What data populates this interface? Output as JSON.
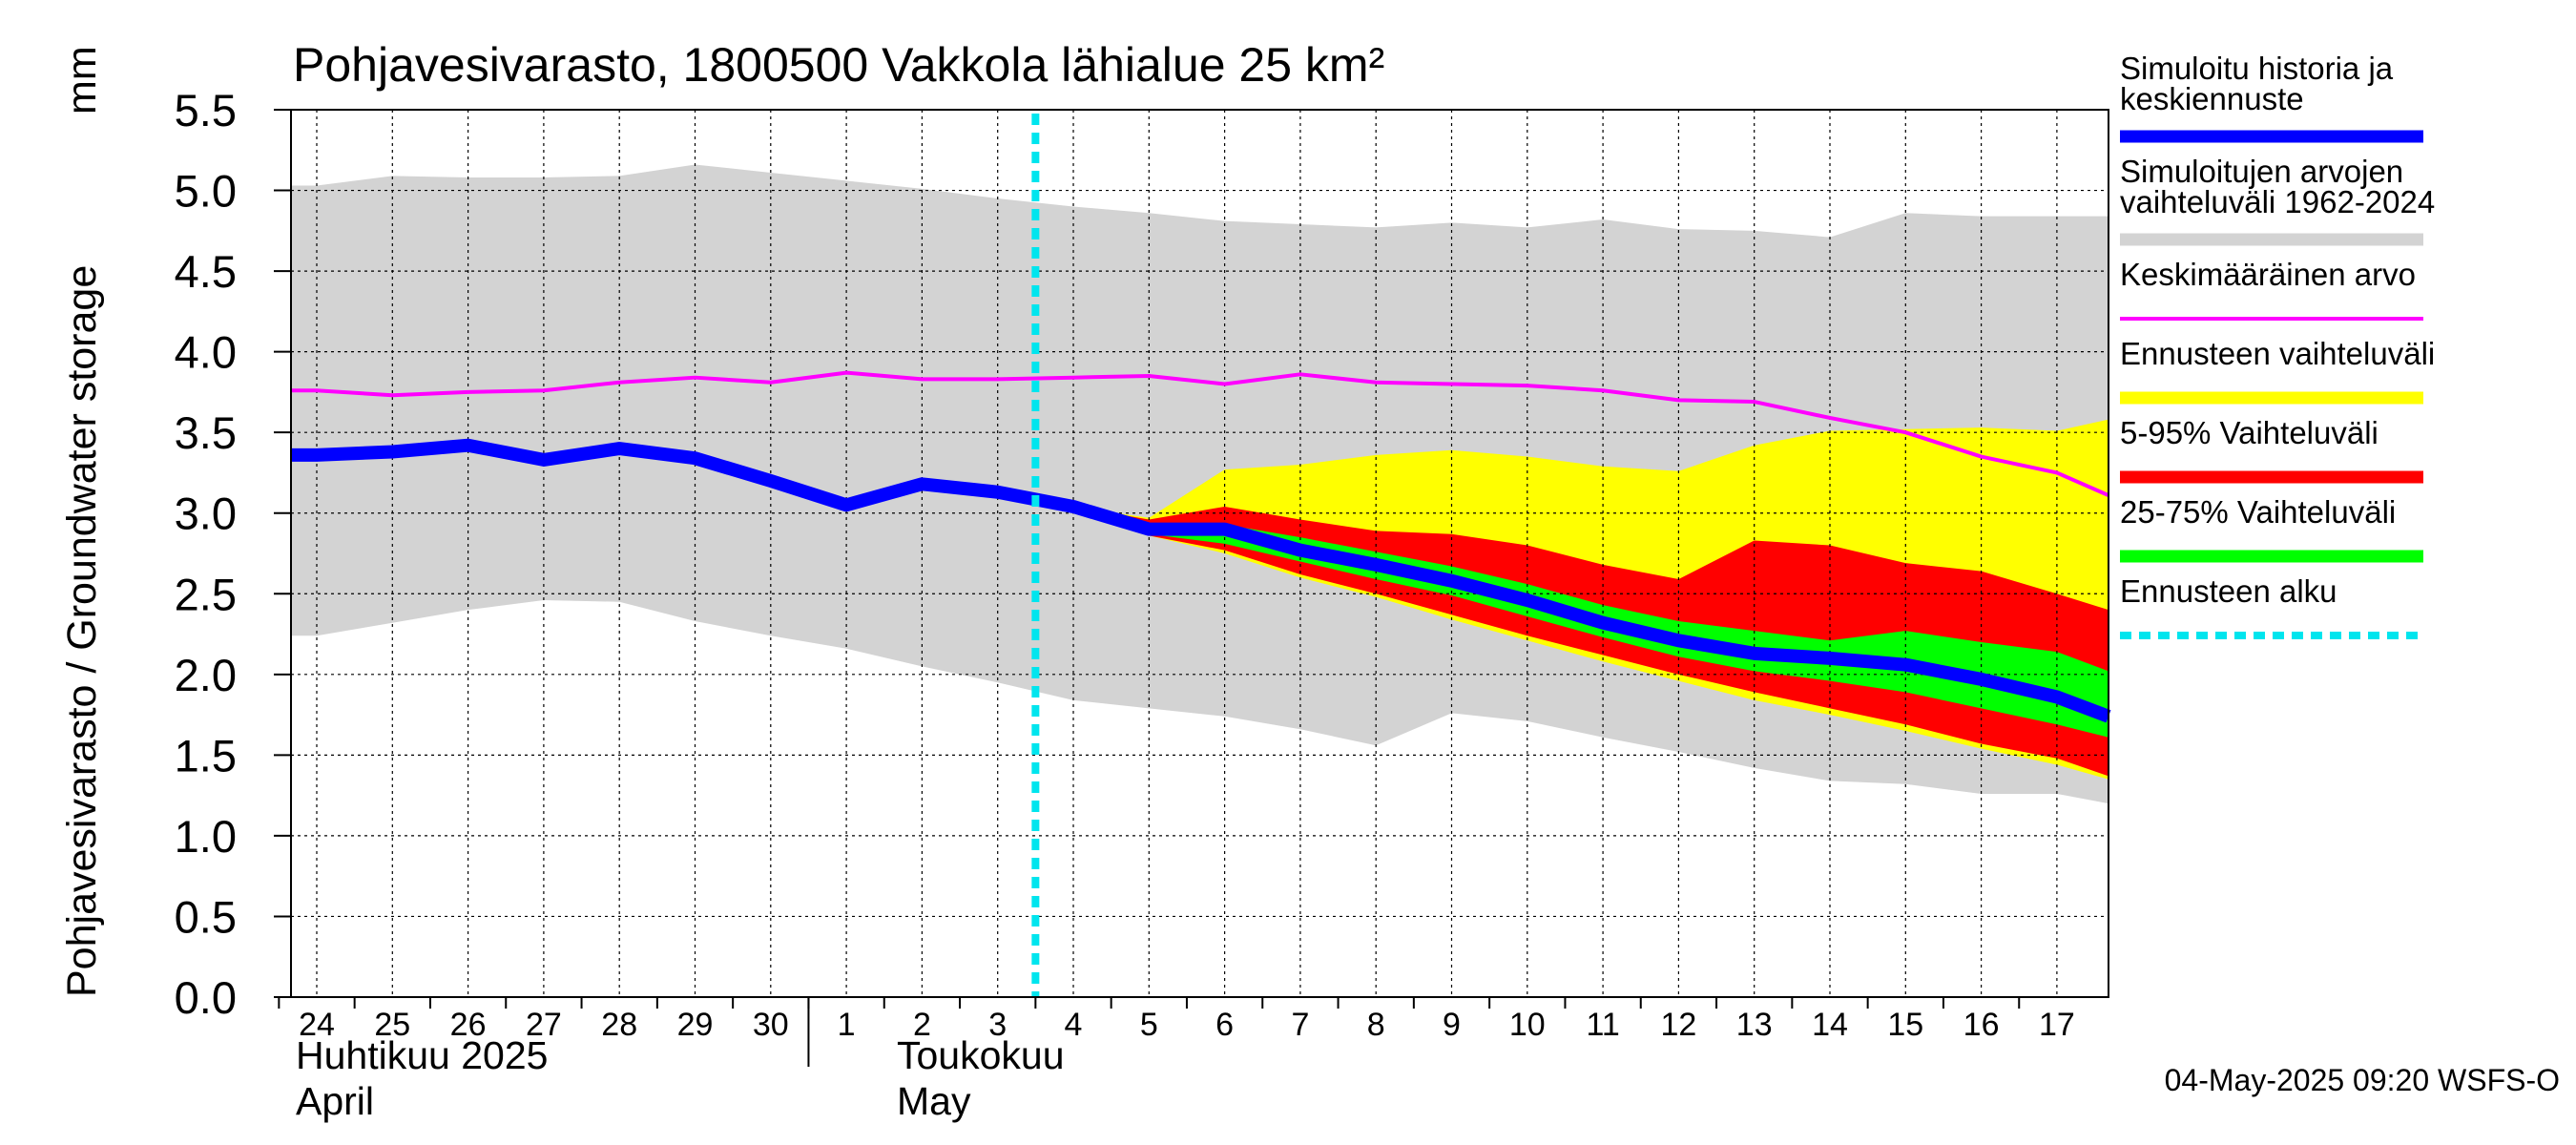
{
  "chart_data": {
    "type": "area",
    "title": "Pohjavesivarasto, 1800500 Vakkola lähialue 25 km²",
    "ylabel": "Pohjavesivarasto / Groundwater storage",
    "yunit": "mm",
    "ylim": [
      0,
      5.5
    ],
    "yticks": [
      "0.0",
      "0.5",
      "1.0",
      "1.5",
      "2.0",
      "2.5",
      "3.0",
      "3.5",
      "4.0",
      "4.5",
      "5.0",
      "5.5"
    ],
    "x_day_labels": [
      "24",
      "25",
      "26",
      "27",
      "28",
      "29",
      "30",
      "1",
      "2",
      "3",
      "4",
      "5",
      "6",
      "7",
      "8",
      "9",
      "10",
      "11",
      "12",
      "13",
      "14",
      "15",
      "16",
      "17"
    ],
    "month_labels": [
      {
        "fi": "Huhtikuu  2025",
        "en": "April"
      },
      {
        "fi": "Toukokuu",
        "en": "May"
      }
    ],
    "forecast_start_index": 10,
    "series": {
      "hist_range": {
        "upper": [
          5.03,
          5.09,
          5.08,
          5.08,
          5.09,
          5.16,
          5.11,
          5.06,
          5.01,
          4.95,
          4.9,
          4.86,
          4.81,
          4.79,
          4.77,
          4.8,
          4.77,
          4.82,
          4.76,
          4.75,
          4.71,
          4.86,
          4.84,
          4.84
        ],
        "lower": [
          2.24,
          2.32,
          2.4,
          2.46,
          2.45,
          2.33,
          2.24,
          2.16,
          2.05,
          1.95,
          1.84,
          1.79,
          1.74,
          1.66,
          1.56,
          1.76,
          1.71,
          1.61,
          1.52,
          1.42,
          1.34,
          1.32,
          1.26,
          1.26
        ],
        "last_lower": 1.2
      },
      "mean": [
        3.76,
        3.73,
        3.75,
        3.76,
        3.81,
        3.84,
        3.81,
        3.87,
        3.83,
        3.83,
        3.84,
        3.85,
        3.8,
        3.86,
        3.81,
        3.8,
        3.79,
        3.76,
        3.7,
        3.69,
        3.59,
        3.5,
        3.35,
        3.25
      ],
      "mean_last": 3.11,
      "simulated": [
        3.36,
        3.38,
        3.42,
        3.33,
        3.4,
        3.34,
        3.2,
        3.05,
        3.18,
        3.13,
        3.04,
        2.9,
        2.9,
        2.77,
        2.68,
        2.58,
        2.46,
        2.32,
        2.21,
        2.13,
        2.1,
        2.06,
        1.97,
        1.86
      ],
      "simulated_last": 1.74,
      "forecast_range": {
        "upper": [
          3.04,
          2.97,
          3.27,
          3.3,
          3.36,
          3.39,
          3.35,
          3.29,
          3.26,
          3.42,
          3.51,
          3.52,
          3.53,
          3.51
        ],
        "lower": [
          3.04,
          2.86,
          2.75,
          2.6,
          2.48,
          2.34,
          2.21,
          2.08,
          1.96,
          1.84,
          1.75,
          1.65,
          1.54,
          1.44
        ],
        "last_upper": 3.58,
        "last_lower": 1.35
      },
      "p5_95": {
        "upper": [
          3.04,
          2.96,
          3.04,
          2.96,
          2.89,
          2.87,
          2.8,
          2.68,
          2.59,
          2.83,
          2.8,
          2.69,
          2.64,
          2.5
        ],
        "lower": [
          3.04,
          2.86,
          2.77,
          2.62,
          2.5,
          2.37,
          2.24,
          2.12,
          2.0,
          1.89,
          1.79,
          1.69,
          1.57,
          1.48
        ],
        "last_upper": 2.4,
        "last_lower": 1.37
      },
      "p25_75": {
        "upper": [
          3.04,
          2.88,
          2.93,
          2.85,
          2.76,
          2.67,
          2.56,
          2.43,
          2.33,
          2.27,
          2.21,
          2.27,
          2.2,
          2.14
        ],
        "lower": [
          3.04,
          2.87,
          2.81,
          2.7,
          2.59,
          2.49,
          2.36,
          2.23,
          2.11,
          2.02,
          1.96,
          1.89,
          1.79,
          1.69
        ],
        "last_upper": 2.02,
        "last_lower": 1.61
      }
    },
    "legend": [
      {
        "label1": "Simuloitu historia ja",
        "label2": "keskiennuste",
        "color": "#0000ff",
        "style": "thick"
      },
      {
        "label1": "Simuloitujen arvojen",
        "label2": "vaihteluväli 1962-2024",
        "color": "#d3d3d3",
        "style": "thick"
      },
      {
        "label1": "Keskimääräinen arvo",
        "label2": "",
        "color": "#ff00ff",
        "style": "thin"
      },
      {
        "label1": "Ennusteen vaihteluväli",
        "label2": "",
        "color": "#ffff00",
        "style": "thick"
      },
      {
        "label1": "5-95% Vaihteluväli",
        "label2": "",
        "color": "#ff0000",
        "style": "thick"
      },
      {
        "label1": "25-75% Vaihteluväli",
        "label2": "",
        "color": "#00ff00",
        "style": "thick"
      },
      {
        "label1": "Ennusteen alku",
        "label2": "",
        "color": "#00e5ee",
        "style": "dotted"
      }
    ],
    "footer": "04-May-2025 09:20 WSFS-O",
    "colors": {
      "hist_range": "#d3d3d3",
      "forecast_range": "#ffff00",
      "p5_95": "#ff0000",
      "p25_75": "#00ff00",
      "simulated": "#0000ff",
      "mean": "#ff00ff",
      "forecast_line": "#00e5ee"
    }
  }
}
